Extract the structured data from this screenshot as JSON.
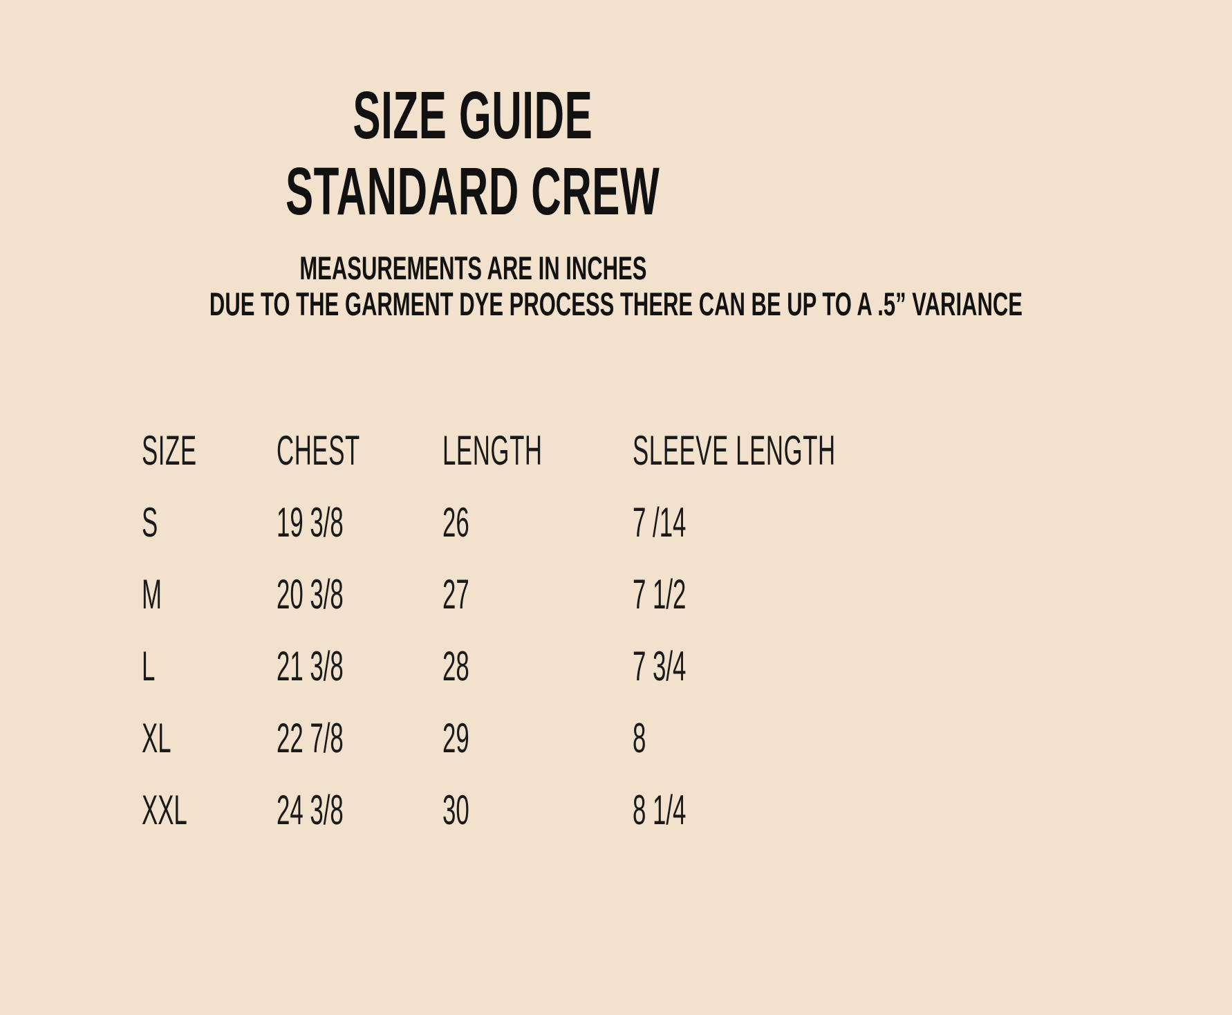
{
  "page": {
    "background_color": "#F2E2CD",
    "text_color": "#141414"
  },
  "chart_data": {
    "type": "table",
    "title_line1": "SIZE GUIDE",
    "title_line2": "STANDARD CREW",
    "notes": [
      "MEASUREMENTS ARE IN INCHES",
      "DUE TO THE GARMENT DYE PROCESS THERE CAN BE UP TO A .5” VARIANCE"
    ],
    "units": "inches",
    "columns": [
      "SIZE",
      "CHEST",
      "LENGTH",
      "SLEEVE LENGTH"
    ],
    "rows": [
      [
        "S",
        "19 3/8",
        "26",
        "7 /14"
      ],
      [
        "M",
        "20 3/8",
        "27",
        "7 1/2"
      ],
      [
        "L",
        "21 3/8",
        "28",
        "7 3/4"
      ],
      [
        "XL",
        "22 7/8",
        "29",
        "8"
      ],
      [
        "XXL",
        "24 3/8",
        "30",
        "8 1/4"
      ]
    ]
  }
}
